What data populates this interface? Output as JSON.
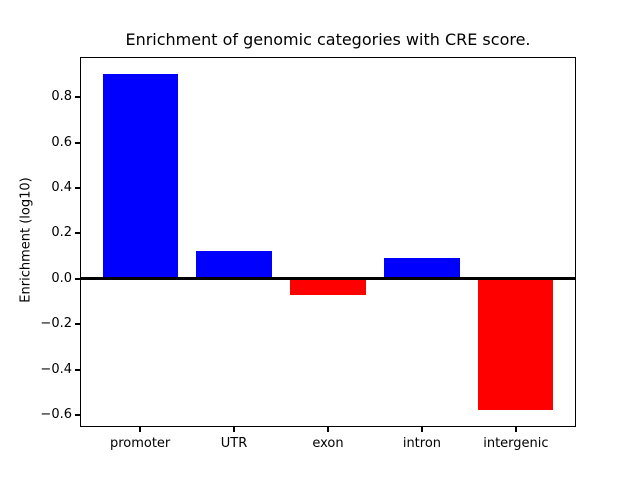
{
  "chart_data": {
    "type": "bar",
    "title": "Enrichment of genomic categories with CRE score.",
    "xlabel": "",
    "ylabel": "Enrichment (log10)",
    "categories": [
      "promoter",
      "UTR",
      "exon",
      "intron",
      "intergenic"
    ],
    "values": [
      0.9,
      0.12,
      -0.07,
      0.09,
      -0.58
    ],
    "bar_colors": [
      "#0000ff",
      "#0000ff",
      "#ff0000",
      "#0000ff",
      "#ff0000"
    ],
    "positive_color": "#0000ff",
    "negative_color": "#ff0000",
    "zero_line": true,
    "zero_line_color": "#000000",
    "yticks": {
      "values": [
        0.8,
        0.6,
        0.4,
        0.2,
        0.0,
        -0.2,
        -0.4,
        -0.6
      ],
      "labels": [
        "0.8",
        "0.6",
        "0.4",
        "0.2",
        "0.0",
        "−0.2",
        "−0.4",
        "−0.6"
      ]
    },
    "ylim": [
      -0.654,
      0.974
    ],
    "xlim": [
      -0.64,
      4.64
    ],
    "bar_width": 0.8,
    "grid": false,
    "legend": false,
    "background": "#ffffff",
    "spine_color": "#000000"
  }
}
